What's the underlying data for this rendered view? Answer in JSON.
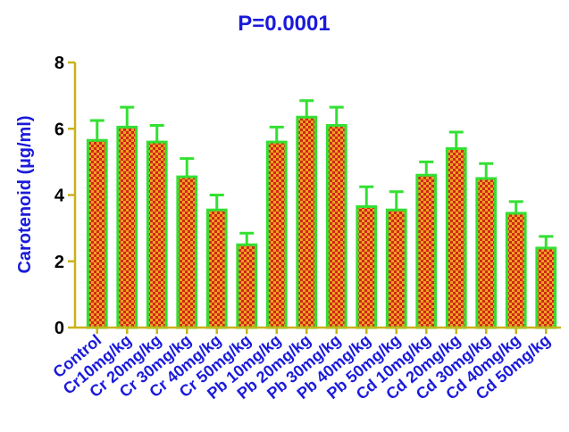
{
  "colors": {
    "title": "#1a1adb",
    "axis": "#c9b21b",
    "bar_stroke": "#33e033",
    "bar_fill_a": "#f0a020",
    "bar_fill_b": "#d02818",
    "error_bar": "#33e033",
    "ylabel": "#1a1adb",
    "xtick": "#1a1adb",
    "ytick": "#000000"
  },
  "chart_data": {
    "type": "bar",
    "title": "P=0.0001",
    "xlabel": "",
    "ylabel": "Carotenoid (µg/ml)",
    "ylim": [
      0,
      8
    ],
    "yticks": [
      0,
      2,
      4,
      6,
      8
    ],
    "grid": false,
    "categories": [
      "Control",
      "Cr10mg/kg",
      "Cr 20mg/kg",
      "Cr 30mg/kg",
      "Cr 40mg/kg",
      "Cr 50mg/kg",
      "Pb 10mg/kg",
      "Pb 20mg/kg",
      "Pb 30mg/kg",
      "Pb 40mg/kg",
      "Pb 50mg/kg",
      "Cd 10mg/kg",
      "Cd 20mg/kg",
      "Cd 30mg/kg",
      "Cd 40mg/kg",
      "Cd 50mg/kg"
    ],
    "values": [
      5.65,
      6.05,
      5.6,
      4.55,
      3.55,
      2.5,
      5.6,
      6.35,
      6.1,
      3.65,
      3.55,
      4.6,
      5.4,
      4.5,
      3.45,
      2.4
    ],
    "errors": [
      0.6,
      0.6,
      0.5,
      0.55,
      0.45,
      0.35,
      0.45,
      0.5,
      0.55,
      0.6,
      0.55,
      0.4,
      0.5,
      0.45,
      0.35,
      0.35
    ]
  }
}
